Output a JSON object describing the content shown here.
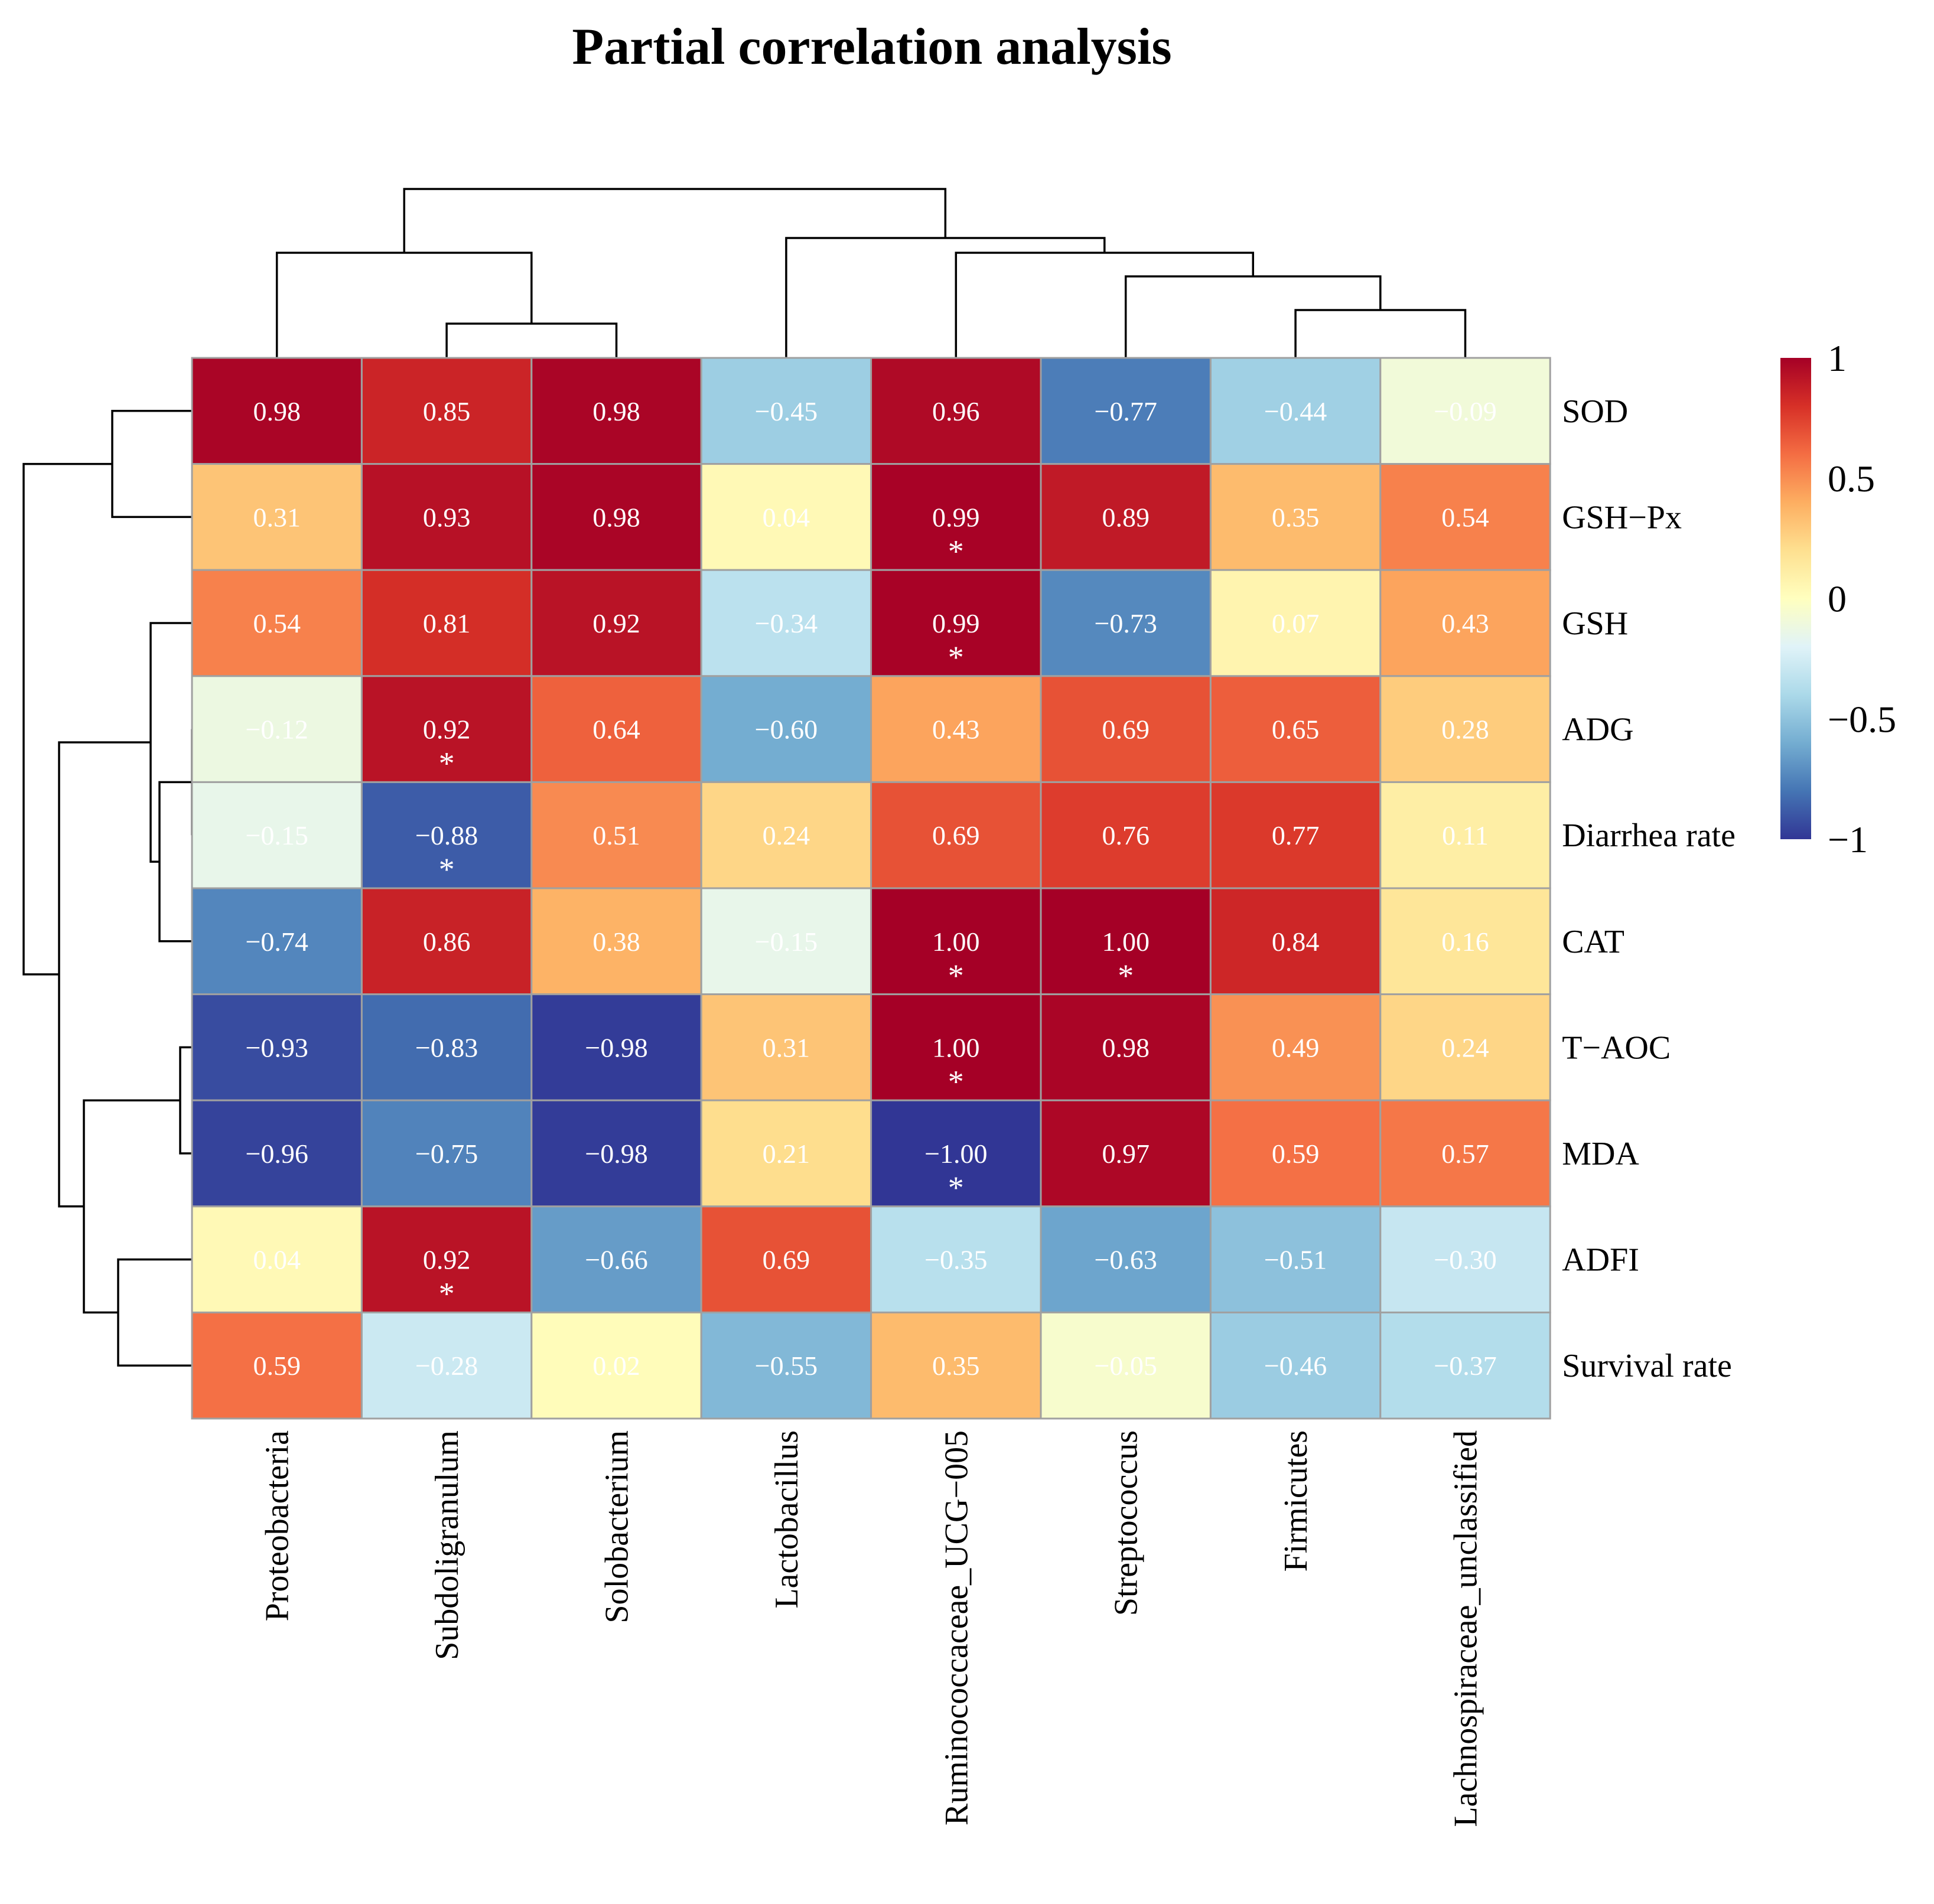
{
  "chart_data": {
    "type": "heatmap",
    "title": "Partial correlation analysis",
    "rows": [
      "SOD",
      "GSH−Px",
      "GSH",
      "ADG",
      "Diarrhea rate",
      "CAT",
      "T−AOC",
      "MDA",
      "ADFI",
      "Survival rate"
    ],
    "columns": [
      "Proteobacteria",
      "Subdoligranulum",
      "Solobacterium",
      "Lactobacillus",
      "Ruminococcaceae_UCG−005",
      "Streptococcus",
      "Firmicutes",
      "Lachnospiraceae_unclassified"
    ],
    "values": [
      [
        0.98,
        0.85,
        0.98,
        -0.45,
        0.96,
        -0.77,
        -0.44,
        -0.09
      ],
      [
        0.31,
        0.93,
        0.98,
        0.04,
        0.99,
        0.89,
        0.35,
        0.54
      ],
      [
        0.54,
        0.81,
        0.92,
        -0.34,
        0.99,
        -0.73,
        0.07,
        0.43
      ],
      [
        -0.12,
        0.92,
        0.64,
        -0.6,
        0.43,
        0.69,
        0.65,
        0.28
      ],
      [
        -0.15,
        -0.88,
        0.51,
        0.24,
        0.69,
        0.76,
        0.77,
        0.11
      ],
      [
        -0.74,
        0.86,
        0.38,
        -0.15,
        1.0,
        1.0,
        0.84,
        0.16
      ],
      [
        -0.93,
        -0.83,
        -0.98,
        0.31,
        1.0,
        0.98,
        0.49,
        0.24
      ],
      [
        -0.96,
        -0.75,
        -0.98,
        0.21,
        -1.0,
        0.97,
        0.59,
        0.57
      ],
      [
        0.04,
        0.92,
        -0.66,
        0.69,
        -0.35,
        -0.63,
        -0.51,
        -0.3
      ],
      [
        0.59,
        -0.28,
        0.02,
        -0.55,
        0.35,
        -0.05,
        -0.46,
        -0.37
      ]
    ],
    "labels": [
      [
        "0.98",
        "0.85",
        "0.98",
        "−0.45",
        "0.96",
        "−0.77",
        "−0.44",
        "−0.09"
      ],
      [
        "0.31",
        "0.93",
        "0.98",
        "0.04",
        "0.99",
        "0.89",
        "0.35",
        "0.54"
      ],
      [
        "0.54",
        "0.81",
        "0.92",
        "−0.34",
        "0.99",
        "−0.73",
        "0.07",
        "0.43"
      ],
      [
        "−0.12",
        "0.92",
        "0.64",
        "−0.60",
        "0.43",
        "0.69",
        "0.65",
        "0.28"
      ],
      [
        "−0.15",
        "−0.88",
        "0.51",
        "0.24",
        "0.69",
        "0.76",
        "0.77",
        "0.11"
      ],
      [
        "−0.74",
        "0.86",
        "0.38",
        "−0.15",
        "1.00",
        "1.00",
        "0.84",
        "0.16"
      ],
      [
        "−0.93",
        "−0.83",
        "−0.98",
        "0.31",
        "1.00",
        "0.98",
        "0.49",
        "0.24"
      ],
      [
        "−0.96",
        "−0.75",
        "−0.98",
        "0.21",
        "−1.00",
        "0.97",
        "0.59",
        "0.57"
      ],
      [
        "0.04",
        "0.92",
        "−0.66",
        "0.69",
        "−0.35",
        "−0.63",
        "−0.51",
        "−0.30"
      ],
      [
        "0.59",
        "−0.28",
        "0.02",
        "−0.55",
        "0.35",
        "−0.05",
        "−0.46",
        "−0.37"
      ]
    ],
    "significance_marker": "*",
    "significant_cells": [
      [
        1,
        4
      ],
      [
        2,
        4
      ],
      [
        3,
        1
      ],
      [
        4,
        1
      ],
      [
        5,
        4
      ],
      [
        5,
        5
      ],
      [
        6,
        4
      ],
      [
        7,
        4
      ],
      [
        8,
        1
      ]
    ],
    "color_scale": {
      "range": [
        -1,
        1
      ],
      "colors": [
        "#313695",
        "#4575b4",
        "#74add1",
        "#abd9e9",
        "#e0f3f8",
        "#ffffbf",
        "#fee090",
        "#fdae61",
        "#f46d43",
        "#d73027",
        "#a50026"
      ],
      "ticks": [
        1,
        0.5,
        0,
        -0.5,
        -1
      ],
      "tick_labels": [
        "1",
        "0.5",
        "0",
        "−0.5",
        "−1"
      ]
    },
    "row_dendrogram": true,
    "column_dendrogram": true,
    "legend_position": "right"
  }
}
